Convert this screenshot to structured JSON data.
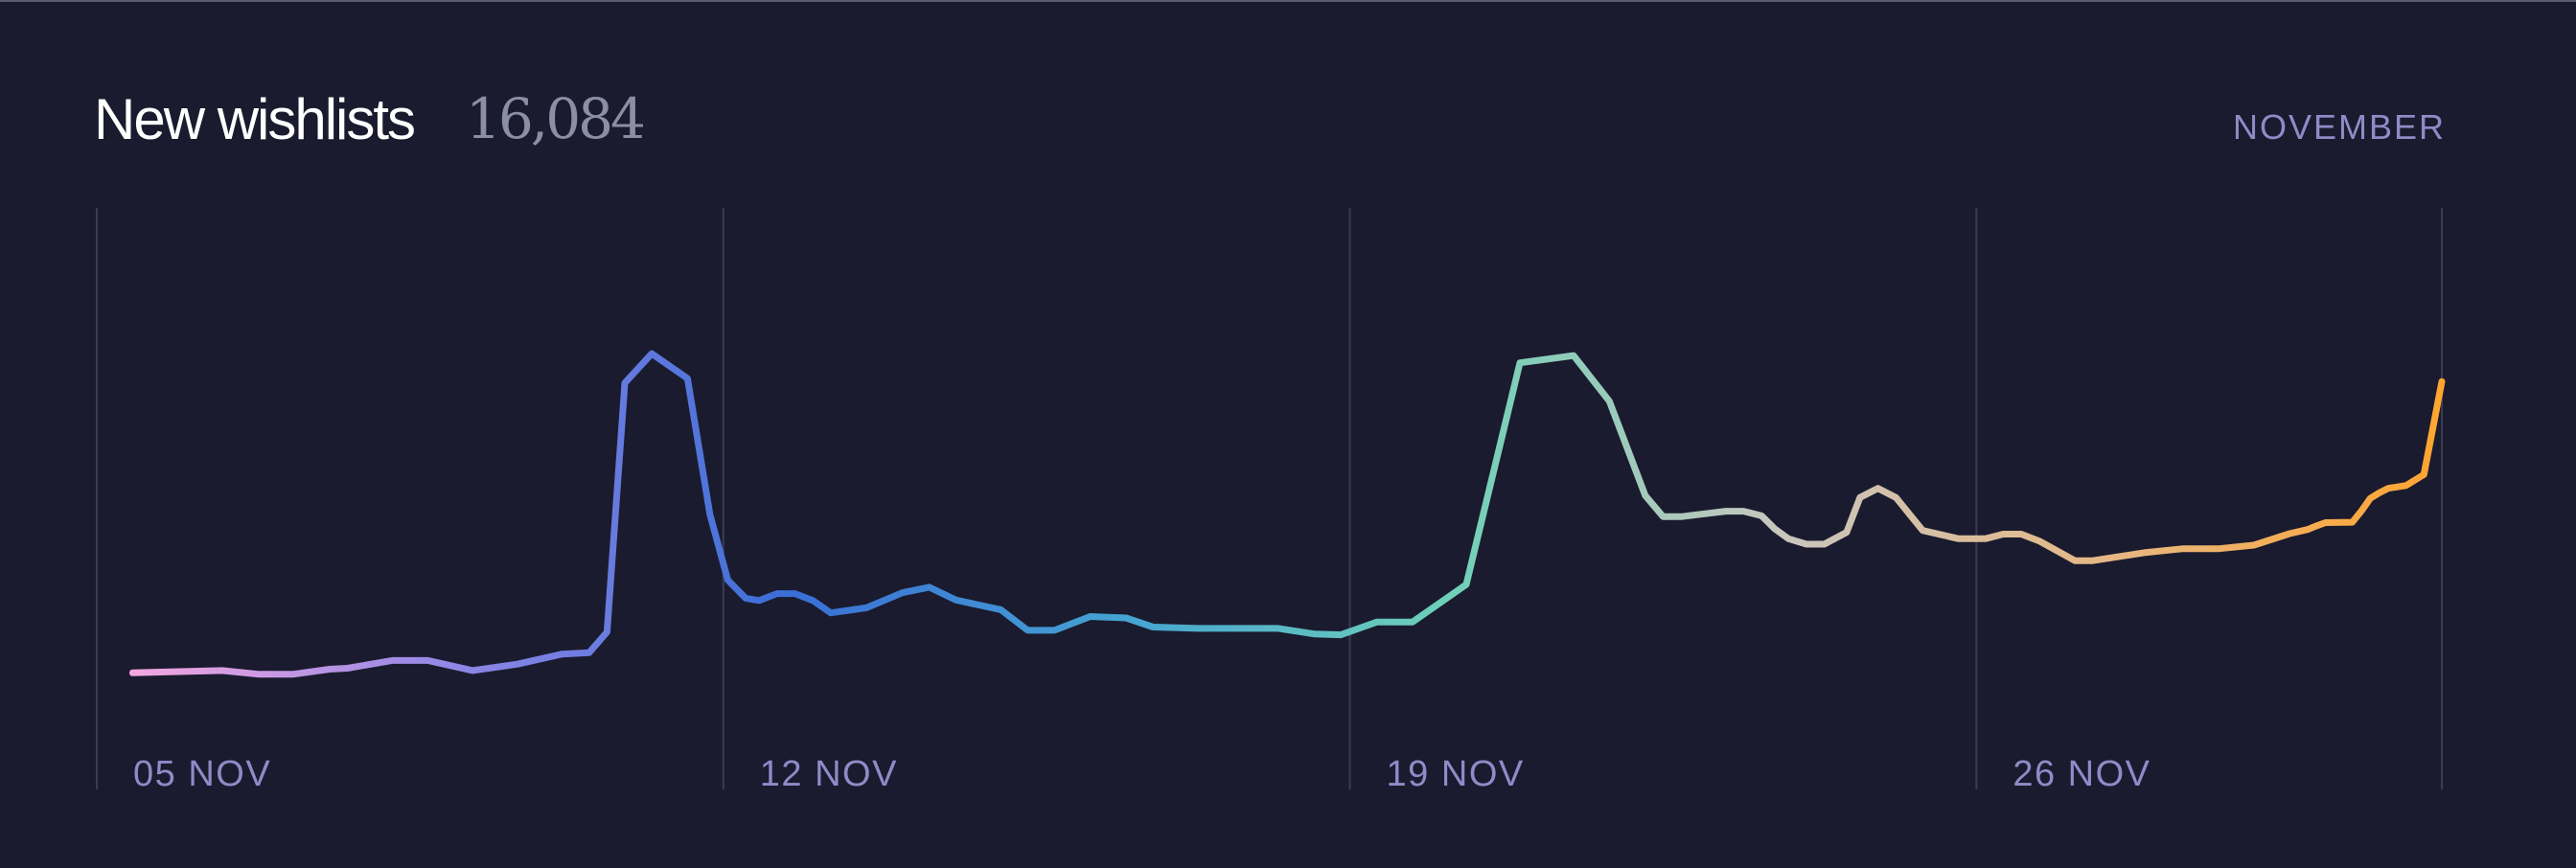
{
  "header": {
    "title": "New wishlists",
    "total": "16,084",
    "period": "NOVEMBER"
  },
  "colors": {
    "background": "#1a1b2e",
    "gridline": "#3a3c52",
    "title": "#ffffff",
    "total": "#8c8ea6",
    "label": "#8f8bc8",
    "gradient_stops": [
      "#f4a7e0",
      "#8e86e6",
      "#3a6ed6",
      "#45a3d2",
      "#6fd0b8",
      "#c9c6be",
      "#e6b783",
      "#ffa530"
    ]
  },
  "chart_data": {
    "type": "line",
    "title": "New wishlists",
    "x_unit": "day of November",
    "xlim": [
      4.7,
      30.9
    ],
    "ylim": [
      0,
      1000
    ],
    "grid": true,
    "legend": "none",
    "xticks": [
      {
        "x": 4.7,
        "label": "05 NOV"
      },
      {
        "x": 11.7,
        "label": "12 NOV"
      },
      {
        "x": 18.7,
        "label": "19 NOV"
      },
      {
        "x": 25.7,
        "label": "26 NOV"
      },
      {
        "x": 30.9,
        "label": ""
      }
    ],
    "series": [
      {
        "x": [
          5.1,
          6.1,
          6.5,
          6.9,
          7.3,
          7.5,
          8.0,
          8.4,
          8.9,
          9.4,
          9.9,
          10.2,
          10.4,
          10.6,
          10.9,
          11.3,
          11.55,
          11.75,
          11.95,
          12.1,
          12.3,
          12.5,
          12.7,
          12.9,
          13.3,
          13.7,
          14.0,
          14.3,
          14.8,
          15.1,
          15.4,
          15.8,
          16.2,
          16.5,
          17.0,
          17.5,
          17.9,
          18.3,
          18.6,
          19.0,
          19.4,
          20.0,
          20.6,
          21.2,
          21.6,
          22.0,
          22.2,
          22.4,
          22.9,
          23.1,
          23.3,
          23.45,
          23.6,
          23.8,
          24.0,
          24.25,
          24.4,
          24.6,
          24.8,
          25.1,
          25.5,
          25.8,
          26.0,
          26.2,
          26.4,
          26.8,
          27.0,
          27.2,
          27.6,
          27.8,
          28.0,
          28.4,
          28.8,
          29.2,
          29.4,
          29.5,
          29.6,
          29.9,
          30.0,
          30.1,
          30.2,
          30.3,
          30.5,
          30.7,
          30.9
        ],
        "y": [
          37,
          42,
          34,
          34,
          45,
          47,
          64,
          64,
          42,
          56,
          78,
          81,
          126,
          670,
          734,
          680,
          383,
          240,
          200,
          195,
          210,
          210,
          195,
          168,
          179,
          212,
          224,
          196,
          175,
          130,
          130,
          160,
          157,
          137,
          134,
          134,
          134,
          122,
          120,
          148,
          148,
          230,
          714,
          730,
          630,
          424,
          378,
          378,
          390,
          390,
          380,
          351,
          330,
          318,
          318,
          344,
          420,
          440,
          420,
          348,
          330,
          330,
          340,
          340,
          325,
          282,
          282,
          288,
          300,
          304,
          308,
          308,
          316,
          341,
          350,
          358,
          365,
          366,
          390,
          418,
          430,
          440,
          446,
          470,
          673
        ]
      }
    ]
  }
}
